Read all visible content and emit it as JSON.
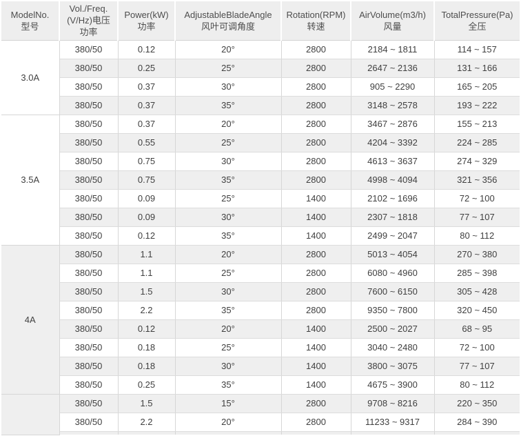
{
  "colors": {
    "header_bg": "#eeeeee",
    "row_alt_bg": "#efefef",
    "row_bg": "#ffffff",
    "border": "#d6d6d6",
    "text": "#3f3f3f",
    "header_text": "#4d4d4d"
  },
  "table": {
    "columns": [
      {
        "key": "model",
        "lines": [
          "ModelNo.",
          "型号"
        ]
      },
      {
        "key": "voltage-freq",
        "lines": [
          "Vol./Freq.",
          "(V/Hz)电压",
          "功率"
        ]
      },
      {
        "key": "power",
        "lines": [
          "Power(kW)",
          "功率"
        ]
      },
      {
        "key": "blade-angle",
        "lines": [
          "AdjustableBladeAngle",
          "风叶可调角度"
        ]
      },
      {
        "key": "rotation",
        "lines": [
          "Rotation(RPM)",
          "转速"
        ]
      },
      {
        "key": "air-volume",
        "lines": [
          "AirVolume(m3/h)",
          "风量"
        ]
      },
      {
        "key": "total-pressure",
        "lines": [
          "TotalPressure(Pa)",
          "全压"
        ]
      }
    ],
    "groups": [
      {
        "model": "3.0A",
        "model_cell_shaded": false,
        "extends_below": false,
        "rows": [
          [
            "380/50",
            "0.12",
            "20°",
            "2800",
            "2184 ~ 1811",
            "114 ~ 157"
          ],
          [
            "380/50",
            "0.25",
            "25°",
            "2800",
            "2647 ~ 2136",
            "131 ~ 166"
          ],
          [
            "380/50",
            "0.37",
            "30°",
            "2800",
            "905 ~ 2290",
            "165 ~ 205"
          ],
          [
            "380/50",
            "0.37",
            "35°",
            "2800",
            "3148 ~ 2578",
            "193 ~ 222"
          ]
        ]
      },
      {
        "model": "3.5A",
        "model_cell_shaded": false,
        "extends_below": false,
        "rows": [
          [
            "380/50",
            "0.37",
            "20°",
            "2800",
            "3467 ~ 2876",
            "155 ~ 213"
          ],
          [
            "380/50",
            "0.55",
            "25°",
            "2800",
            "4204 ~ 3392",
            "224 ~ 285"
          ],
          [
            "380/50",
            "0.75",
            "30°",
            "2800",
            "4613 ~ 3637",
            "274 ~ 329"
          ],
          [
            "380/50",
            "0.75",
            "35°",
            "2800",
            "4998 ~ 4094",
            "321 ~ 356"
          ],
          [
            "380/50",
            "0.09",
            "25°",
            "1400",
            "2102 ~ 1696",
            "72 ~ 100"
          ],
          [
            "380/50",
            "0.09",
            "30°",
            "1400",
            "2307 ~ 1818",
            "77 ~ 107"
          ],
          [
            "380/50",
            "0.12",
            "35°",
            "1400",
            "2499 ~ 2047",
            "80 ~ 112"
          ]
        ]
      },
      {
        "model": "4A",
        "model_cell_shaded": true,
        "extends_below": false,
        "rows": [
          [
            "380/50",
            "1.1",
            "20°",
            "2800",
            "5013 ~ 4054",
            "270 ~ 380"
          ],
          [
            "380/50",
            "1.1",
            "25°",
            "2800",
            "6080 ~ 4960",
            "285 ~ 398"
          ],
          [
            "380/50",
            "1.5",
            "30°",
            "2800",
            "7600 ~ 6150",
            "305 ~ 428"
          ],
          [
            "380/50",
            "2.2",
            "35°",
            "2800",
            "9350 ~ 7800",
            "320 ~ 450"
          ],
          [
            "380/50",
            "0.12",
            "20°",
            "1400",
            "2500 ~ 2027",
            "68 ~ 95"
          ],
          [
            "380/50",
            "0.18",
            "25°",
            "1400",
            "3040 ~ 2480",
            "72 ~ 100"
          ],
          [
            "380/50",
            "0.18",
            "30°",
            "1400",
            "3800 ~ 3075",
            "77 ~ 107"
          ],
          [
            "380/50",
            "0.25",
            "35°",
            "1400",
            "4675 ~ 3900",
            "80 ~ 112"
          ]
        ]
      },
      {
        "model": "",
        "model_cell_shaded": true,
        "extends_below": true,
        "rows": [
          [
            "380/50",
            "1.5",
            "15°",
            "2800",
            "9708 ~ 8216",
            "220 ~ 350"
          ],
          [
            "380/50",
            "2.2",
            "20°",
            "2800",
            "11233 ~ 9317",
            "284 ~ 390"
          ]
        ]
      }
    ]
  }
}
